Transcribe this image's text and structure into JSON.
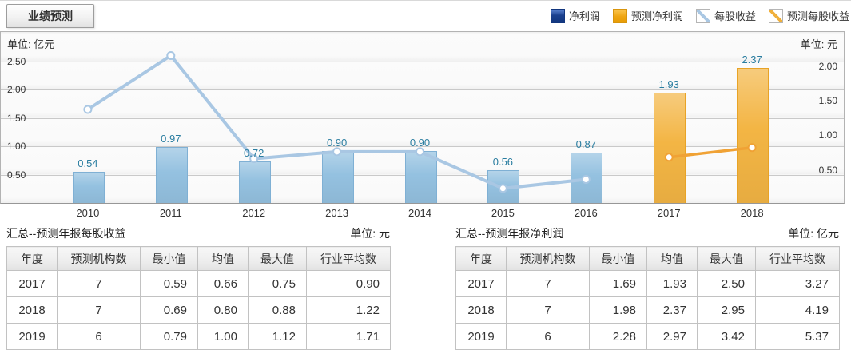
{
  "tab": {
    "label": "业绩预测"
  },
  "legend": {
    "items": [
      {
        "label": "净利润",
        "swatch": "solid-dark-blue",
        "color": "#1b418f"
      },
      {
        "label": "预测净利润",
        "swatch": "solid-orange",
        "color": "#efa511"
      },
      {
        "label": "每股收益",
        "swatch": "diagonal-light-blue",
        "color": "#a9c7e3"
      },
      {
        "label": "预测每股收益",
        "swatch": "diagonal-orange",
        "color": "#f0b03c"
      }
    ]
  },
  "chart_data": {
    "type": "bar",
    "subtype": "dual-axis bar + line",
    "categories": [
      "2010",
      "2011",
      "2012",
      "2013",
      "2014",
      "2015",
      "2016",
      "2017",
      "2018"
    ],
    "series": [
      {
        "id": "net-profit",
        "name": "净利润",
        "type": "bar",
        "axis": "left",
        "color": "#94c1e0",
        "border": "#7fb0d4",
        "label_color": "#2a7da0",
        "show_labels": true,
        "values": [
          0.54,
          0.97,
          0.72,
          0.9,
          0.9,
          0.56,
          0.87,
          null,
          null
        ]
      },
      {
        "id": "forecast-net-profit",
        "name": "预测净利润",
        "type": "bar",
        "axis": "left",
        "color": "#f3b544",
        "border": "#e8a326",
        "label_color": "#2a7da0",
        "show_labels": true,
        "values": [
          null,
          null,
          null,
          null,
          null,
          null,
          null,
          1.93,
          2.37
        ]
      },
      {
        "id": "eps",
        "name": "每股收益",
        "type": "line",
        "axis": "right",
        "color": "#a9c7e3",
        "show_labels": false,
        "values": [
          1.35,
          2.13,
          0.64,
          0.74,
          0.74,
          0.21,
          0.34,
          null,
          null
        ]
      },
      {
        "id": "forecast-eps",
        "name": "预测每股收益",
        "type": "line",
        "axis": "right",
        "color": "#f0a235",
        "show_labels": false,
        "values": [
          null,
          null,
          null,
          null,
          null,
          null,
          null,
          0.66,
          0.8
        ]
      }
    ],
    "left_axis": {
      "unit_label": "单位: 亿元",
      "ticks": [
        "0.50",
        "1.00",
        "1.50",
        "2.00",
        "2.50"
      ],
      "range": [
        0,
        3.02
      ]
    },
    "right_axis": {
      "unit_label": "单位: 元",
      "ticks": [
        "0.50",
        "1.00",
        "1.50",
        "2.00"
      ],
      "range": [
        0,
        2.47
      ]
    },
    "grid": true,
    "legend_position": "top-right"
  },
  "tables": [
    {
      "title": "汇总--预测年报每股收益",
      "unit": "单位: 元",
      "columns": [
        "年度",
        "预测机构数",
        "最小值",
        "均值",
        "最大值",
        "行业平均数"
      ],
      "rows": [
        [
          "2017",
          "7",
          "0.59",
          "0.66",
          "0.75",
          "0.90"
        ],
        [
          "2018",
          "7",
          "0.69",
          "0.80",
          "0.88",
          "1.22"
        ],
        [
          "2019",
          "6",
          "0.79",
          "1.00",
          "1.12",
          "1.71"
        ]
      ]
    },
    {
      "title": "汇总--预测年报净利润",
      "unit": "单位: 亿元",
      "columns": [
        "年度",
        "预测机构数",
        "最小值",
        "均值",
        "最大值",
        "行业平均数"
      ],
      "rows": [
        [
          "2017",
          "7",
          "1.69",
          "1.93",
          "2.50",
          "3.27"
        ],
        [
          "2018",
          "7",
          "1.98",
          "2.37",
          "2.95",
          "4.19"
        ],
        [
          "2019",
          "6",
          "2.28",
          "2.97",
          "3.42",
          "5.37"
        ]
      ]
    }
  ]
}
